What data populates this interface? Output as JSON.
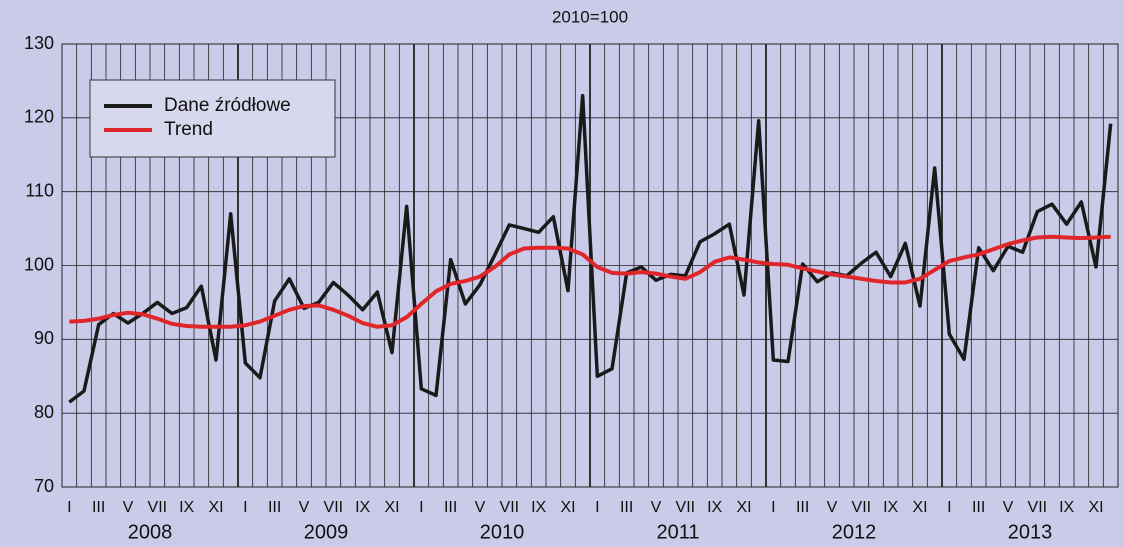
{
  "chart_data": {
    "type": "line",
    "title": "2010=100",
    "categories": [
      "I",
      null,
      "III",
      null,
      "V",
      null,
      "VII",
      null,
      "IX",
      null,
      "XI",
      null,
      "I",
      null,
      "III",
      null,
      "V",
      null,
      "VII",
      null,
      "IX",
      null,
      "XI",
      null,
      "I",
      null,
      "III",
      null,
      "V",
      null,
      "VII",
      null,
      "IX",
      null,
      "XI",
      null,
      "I",
      null,
      "III",
      null,
      "V",
      null,
      "VII",
      null,
      "IX",
      null,
      "XI",
      null,
      "I",
      null,
      "III",
      null,
      "V",
      null,
      "VII",
      null,
      "IX",
      null,
      "XI",
      null,
      "I",
      null,
      "III",
      null,
      "V",
      null,
      "VII",
      null,
      "IX",
      null,
      "XI",
      null
    ],
    "years": [
      "2008",
      "2009",
      "2010",
      "2011",
      "2012",
      "2013"
    ],
    "series": [
      {
        "name": "Dane źródłowe",
        "color": "#1a1a1a",
        "values": [
          81.5,
          83,
          92,
          93.5,
          92.2,
          93.5,
          95,
          93.5,
          94.3,
          97.2,
          87.2,
          107,
          86.8,
          84.8,
          95.2,
          98.2,
          94.2,
          95,
          97.7,
          96,
          94,
          96.4,
          88.2,
          108,
          83.3,
          82.4,
          100.8,
          94.8,
          97.4,
          101.4,
          105.5,
          105,
          104.5,
          106.6,
          96.6,
          123,
          85,
          86,
          99,
          99.8,
          98,
          98.8,
          98.6,
          103.2,
          104.3,
          105.6,
          96,
          119.6,
          87.2,
          87,
          100.2,
          97.8,
          99,
          98.6,
          100.3,
          101.8,
          98.5,
          103,
          94.5,
          113.2,
          90.7,
          87.3,
          102.4,
          99.3,
          102.6,
          101.8,
          107.3,
          108.3,
          105.6,
          108.6,
          99.8,
          119.2
        ]
      },
      {
        "name": "Trend",
        "color": "#e0262b",
        "values": [
          92.4,
          92.5,
          92.8,
          93.3,
          93.6,
          93.4,
          92.8,
          92.1,
          91.8,
          91.7,
          91.7,
          91.7,
          91.9,
          92.4,
          93.2,
          94,
          94.5,
          94.6,
          94,
          93.2,
          92.2,
          91.7,
          91.9,
          93,
          94.8,
          96.5,
          97.5,
          97.9,
          98.5,
          99.8,
          101.5,
          102.3,
          102.4,
          102.4,
          102.3,
          101.5,
          99.8,
          99,
          98.9,
          99.1,
          98.9,
          98.5,
          98.2,
          99.1,
          100.5,
          101.1,
          100.8,
          100.4,
          100.2,
          100.1,
          99.6,
          99.2,
          98.8,
          98.5,
          98.2,
          97.9,
          97.7,
          97.7,
          98.2,
          99.4,
          100.6,
          101.1,
          101.5,
          102.2,
          102.9,
          103.4,
          103.8,
          103.9,
          103.8,
          103.7,
          103.8,
          103.9
        ]
      }
    ],
    "ylim": [
      70,
      130
    ],
    "yticks": [
      70,
      80,
      90,
      100,
      110,
      120,
      130
    ],
    "grid": true,
    "legend": "upper left"
  }
}
